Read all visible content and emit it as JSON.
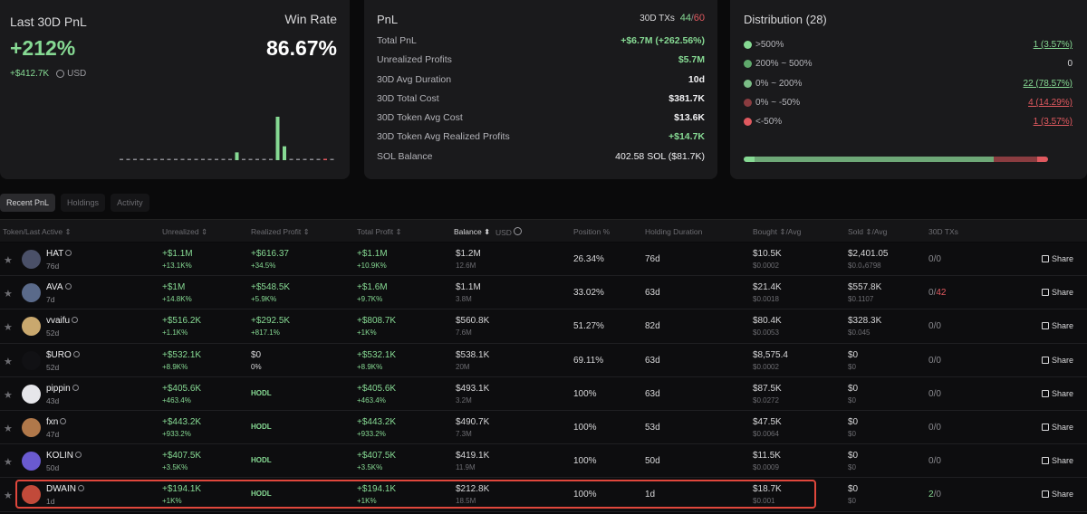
{
  "pnl_summary": {
    "title": "Last 30D PnL",
    "percent": "+212%",
    "amount": "+$412.7K",
    "currency": "USD",
    "win_rate_label": "Win Rate",
    "win_rate": "86.67%"
  },
  "pnl_stats": {
    "title": "PnL",
    "txs_label": "30D TXs",
    "txs_win": "44",
    "txs_total": "60",
    "rows": [
      {
        "label": "Total PnL",
        "value": "+$6.7M (+262.56%)"
      },
      {
        "label": "Unrealized Profits",
        "value": "$5.7M"
      },
      {
        "label": "30D Avg Duration",
        "value": "10d"
      },
      {
        "label": "30D Total Cost",
        "value": "$381.7K"
      },
      {
        "label": "30D Token Avg Cost",
        "value": "$13.6K"
      },
      {
        "label": "30D Token Avg Realized Profits",
        "value": "+$14.7K"
      },
      {
        "label": "SOL Balance",
        "value": "402.58 SOL ($81.7K)"
      }
    ]
  },
  "distribution": {
    "title": "Distribution (28)",
    "rows": [
      {
        "label": ">500%",
        "value": "1 (3.57%)",
        "color": "#86d993"
      },
      {
        "label": "200% ~ 500%",
        "value": "0",
        "color": "#5fa86b"
      },
      {
        "label": "0% ~ 200%",
        "value": "22 (78.57%)",
        "color": "#7bbd86"
      },
      {
        "label": "0% ~ -50%",
        "value": "4 (14.29%)",
        "color": "#8a3c40"
      },
      {
        "label": "<-50%",
        "value": "1 (3.57%)",
        "color": "#e0595f"
      }
    ],
    "bar_segments": [
      {
        "fraction": 0.0357,
        "color": "#86d993"
      },
      {
        "fraction": 0.7857,
        "color": "#6ea877"
      },
      {
        "fraction": 0.1429,
        "color": "#8a3c40"
      },
      {
        "fraction": 0.0357,
        "color": "#e0595f"
      }
    ]
  },
  "chart_data": {
    "type": "bar",
    "values": [
      0.02,
      0.02,
      0.02,
      0.02,
      0.02,
      0.02,
      0.02,
      0.02,
      0.02,
      0.02,
      0.02,
      0.02,
      0.02,
      0.02,
      0.02,
      0.02,
      0.02,
      0.18,
      0.02,
      0.02,
      0.02,
      0.02,
      0.02,
      1.0,
      0.32,
      0.02,
      0.02,
      0.02,
      0.02,
      0.02,
      0.02,
      0.02
    ]
  },
  "tabs": [
    "Recent PnL",
    "Holdings",
    "Activity"
  ],
  "columns": [
    "Token/Last Active",
    "Unrealized",
    "Realized Profit",
    "Total Profit",
    "Balance",
    "USD",
    "Position %",
    "Holding Duration",
    "Bought",
    "/Avg",
    "Sold",
    "/Avg",
    "30D TXs"
  ],
  "share_label": "Share",
  "rows": [
    {
      "name": "HAT",
      "active": "76d",
      "unreal": "+$1.1M",
      "unreal_pct": "+13.1K%",
      "real": "+$616.37",
      "real_pct": "+34.5%",
      "total": "+$1.1M",
      "total_pct": "+10.9K%",
      "bal": "$1.2M",
      "bal_sub": "12.6M",
      "pos": "26.34%",
      "dur": "76d",
      "bought": "$10.5K",
      "bought_avg": "$0.0002",
      "sold": "$2,401.05",
      "sold_avg": "$0.0₄6798",
      "tx_win": "0",
      "tx_total": "0",
      "avatar_color": "#4a5068"
    },
    {
      "name": "AVA",
      "active": "7d",
      "unreal": "+$1M",
      "unreal_pct": "+14.8K%",
      "real": "+$548.5K",
      "real_pct": "+5.9K%",
      "total": "+$1.6M",
      "total_pct": "+9.7K%",
      "bal": "$1.1M",
      "bal_sub": "3.8M",
      "pos": "33.02%",
      "dur": "63d",
      "bought": "$21.4K",
      "bought_avg": "$0.0018",
      "sold": "$557.8K",
      "sold_avg": "$0.1107",
      "tx_win": "0",
      "tx_total": "42",
      "avatar_color": "#5a6a8a"
    },
    {
      "name": "vvaifu",
      "active": "52d",
      "unreal": "+$516.2K",
      "unreal_pct": "+1.1K%",
      "real": "+$292.5K",
      "real_pct": "+817.1%",
      "total": "+$808.7K",
      "total_pct": "+1K%",
      "bal": "$560.8K",
      "bal_sub": "7.6M",
      "pos": "51.27%",
      "dur": "82d",
      "bought": "$80.4K",
      "bought_avg": "$0.0053",
      "sold": "$328.3K",
      "sold_avg": "$0.045",
      "tx_win": "0",
      "tx_total": "0",
      "avatar_color": "#c9a86e"
    },
    {
      "name": "$URO",
      "active": "52d",
      "unreal": "+$532.1K",
      "unreal_pct": "+8.9K%",
      "real": "$0",
      "real_pct": "0%",
      "total": "+$532.1K",
      "total_pct": "+8.9K%",
      "bal": "$538.1K",
      "bal_sub": "20M",
      "pos": "69.11%",
      "dur": "63d",
      "bought": "$8,575.4",
      "bought_avg": "$0.0002",
      "sold": "$0",
      "sold_avg": "$0",
      "tx_win": "0",
      "tx_total": "0",
      "avatar_color": "#111114"
    },
    {
      "name": "pippin",
      "active": "43d",
      "unreal": "+$405.6K",
      "unreal_pct": "+463.4%",
      "real": "HODL",
      "real_pct": "",
      "total": "+$405.6K",
      "total_pct": "+463.4%",
      "bal": "$493.1K",
      "bal_sub": "3.2M",
      "pos": "100%",
      "dur": "63d",
      "bought": "$87.5K",
      "bought_avg": "$0.0272",
      "sold": "$0",
      "sold_avg": "$0",
      "tx_win": "0",
      "tx_total": "0",
      "avatar_color": "#e6e6ea"
    },
    {
      "name": "fxn",
      "active": "47d",
      "unreal": "+$443.2K",
      "unreal_pct": "+933.2%",
      "real": "HODL",
      "real_pct": "",
      "total": "+$443.2K",
      "total_pct": "+933.2%",
      "bal": "$490.7K",
      "bal_sub": "7.3M",
      "pos": "100%",
      "dur": "53d",
      "bought": "$47.5K",
      "bought_avg": "$0.0064",
      "sold": "$0",
      "sold_avg": "$0",
      "tx_win": "0",
      "tx_total": "0",
      "avatar_color": "#b0784a"
    },
    {
      "name": "KOLIN",
      "active": "50d",
      "unreal": "+$407.5K",
      "unreal_pct": "+3.5K%",
      "real": "HODL",
      "real_pct": "",
      "total": "+$407.5K",
      "total_pct": "+3.5K%",
      "bal": "$419.1K",
      "bal_sub": "11.9M",
      "pos": "100%",
      "dur": "50d",
      "bought": "$11.5K",
      "bought_avg": "$0.0009",
      "sold": "$0",
      "sold_avg": "$0",
      "tx_win": "0",
      "tx_total": "0",
      "avatar_color": "#6a5ad0"
    },
    {
      "name": "DWAIN",
      "active": "1d",
      "unreal": "+$194.1K",
      "unreal_pct": "+1K%",
      "real": "HODL",
      "real_pct": "",
      "total": "+$194.1K",
      "total_pct": "+1K%",
      "bal": "$212.8K",
      "bal_sub": "18.5M",
      "pos": "100%",
      "dur": "1d",
      "bought": "$18.7K",
      "bought_avg": "$0.001",
      "sold": "$0",
      "sold_avg": "$0",
      "tx_win": "2",
      "tx_total": "0",
      "avatar_color": "#c24a3a"
    }
  ]
}
